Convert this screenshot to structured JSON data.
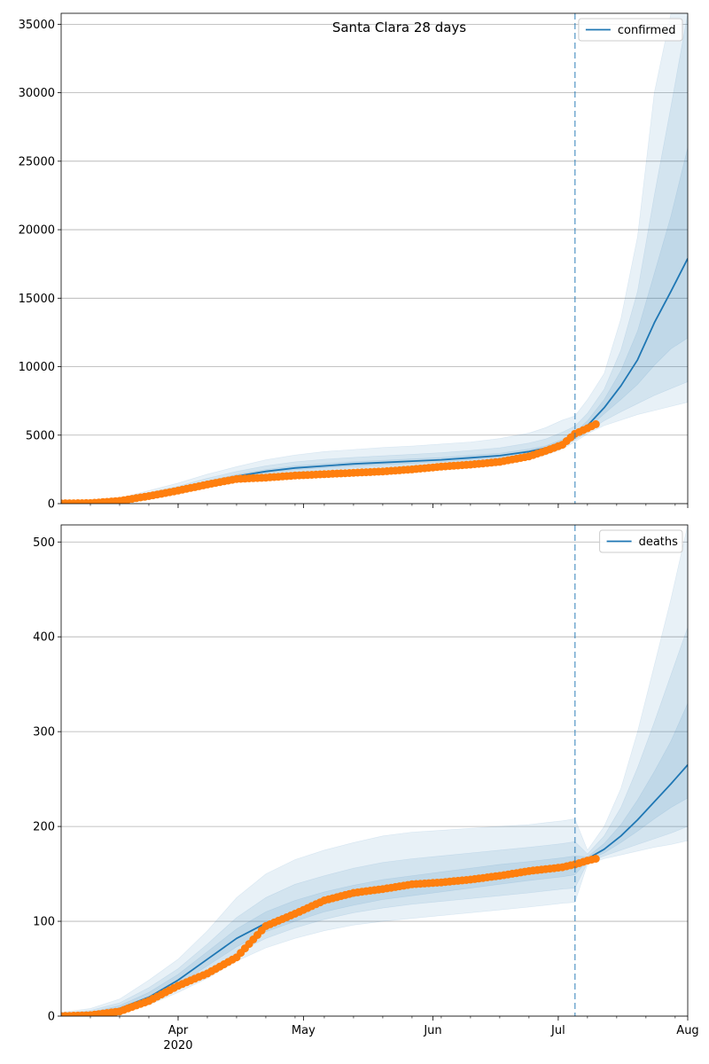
{
  "chart_data": [
    {
      "type": "line",
      "title": "Santa Clara 28 days",
      "legend": {
        "placement": "top-right",
        "entries": [
          "confirmed"
        ]
      },
      "x_dates": [
        "2020-03-04",
        "2020-03-11",
        "2020-03-18",
        "2020-03-25",
        "2020-04-01",
        "2020-04-08",
        "2020-04-15",
        "2020-04-22",
        "2020-04-29",
        "2020-05-06",
        "2020-05-13",
        "2020-05-20",
        "2020-05-27",
        "2020-06-03",
        "2020-06-10",
        "2020-06-17",
        "2020-06-24",
        "2020-06-28",
        "2020-07-02",
        "2020-07-05",
        "2020-07-08",
        "2020-07-12",
        "2020-07-16",
        "2020-07-20",
        "2020-07-24",
        "2020-07-28",
        "2020-08-01"
      ],
      "x_range": [
        "2020-03-04",
        "2020-08-01"
      ],
      "ylim": [
        0,
        35800
      ],
      "yticks": [
        0,
        5000,
        10000,
        15000,
        20000,
        25000,
        30000,
        35000
      ],
      "grid": "horizontal",
      "forecast_start": "2020-07-05",
      "series": [
        {
          "name": "confirmed",
          "color": "#1f77b4",
          "values": [
            20,
            40,
            250,
            600,
            1000,
            1550,
            2000,
            2350,
            2600,
            2750,
            2900,
            3000,
            3100,
            3200,
            3350,
            3500,
            3800,
            4050,
            4500,
            5000,
            5700,
            7000,
            8600,
            10500,
            13200,
            15500,
            17900
          ]
        }
      ],
      "bands": [
        {
          "lower": [
            10,
            25,
            150,
            450,
            800,
            1250,
            1650,
            1950,
            2150,
            2300,
            2400,
            2500,
            2600,
            2700,
            2850,
            3000,
            3300,
            3550,
            4000,
            4500,
            5100,
            5700,
            6100,
            6500,
            6800,
            7100,
            7400
          ],
          "upper": [
            35,
            70,
            400,
            950,
            1500,
            2150,
            2700,
            3200,
            3550,
            3800,
            3950,
            4100,
            4200,
            4350,
            4500,
            4750,
            5150,
            5550,
            6100,
            6400,
            7600,
            9500,
            13500,
            19500,
            30000,
            35800,
            35800
          ]
        },
        {
          "lower": [
            15,
            30,
            190,
            520,
            880,
            1380,
            1780,
            2100,
            2320,
            2470,
            2580,
            2680,
            2780,
            2880,
            3030,
            3180,
            3480,
            3740,
            4180,
            4650,
            5250,
            6050,
            6700,
            7300,
            7900,
            8400,
            8900
          ],
          "upper": [
            28,
            55,
            330,
            800,
            1270,
            1850,
            2350,
            2760,
            3050,
            3240,
            3370,
            3490,
            3600,
            3720,
            3880,
            4070,
            4420,
            4720,
            5220,
            5650,
            6600,
            8350,
            11200,
            15500,
            22500,
            29000,
            35800
          ]
        },
        {
          "lower": [
            18,
            35,
            220,
            570,
            940,
            1470,
            1890,
            2220,
            2460,
            2610,
            2740,
            2840,
            2940,
            3040,
            3190,
            3340,
            3640,
            3900,
            4340,
            4820,
            5460,
            6550,
            7600,
            8700,
            10100,
            11300,
            12100
          ],
          "upper": [
            24,
            47,
            285,
            660,
            1080,
            1650,
            2120,
            2490,
            2750,
            2910,
            3060,
            3160,
            3260,
            3360,
            3520,
            3680,
            3980,
            4220,
            4680,
            5200,
            6050,
            7600,
            9700,
            12600,
            16800,
            21000,
            26000
          ]
        }
      ],
      "observed": {
        "color": "#ff7f0e",
        "x_dates": [
          "2020-03-04",
          "2020-03-11",
          "2020-03-18",
          "2020-03-25",
          "2020-04-01",
          "2020-04-08",
          "2020-04-15",
          "2020-04-22",
          "2020-04-29",
          "2020-05-06",
          "2020-05-13",
          "2020-05-20",
          "2020-05-27",
          "2020-06-03",
          "2020-06-10",
          "2020-06-17",
          "2020-06-24",
          "2020-06-28",
          "2020-07-02",
          "2020-07-05",
          "2020-07-08",
          "2020-07-10"
        ],
        "values": [
          20,
          40,
          200,
          550,
          950,
          1400,
          1800,
          1900,
          2050,
          2150,
          2250,
          2350,
          2500,
          2700,
          2850,
          3050,
          3450,
          3850,
          4300,
          5100,
          5500,
          5800
        ]
      }
    },
    {
      "type": "line",
      "title": "",
      "legend": {
        "placement": "top-right",
        "entries": [
          "deaths"
        ]
      },
      "x_dates": [
        "2020-03-04",
        "2020-03-11",
        "2020-03-18",
        "2020-03-25",
        "2020-04-01",
        "2020-04-08",
        "2020-04-15",
        "2020-04-22",
        "2020-04-29",
        "2020-05-06",
        "2020-05-13",
        "2020-05-20",
        "2020-05-27",
        "2020-06-03",
        "2020-06-10",
        "2020-06-17",
        "2020-06-24",
        "2020-06-28",
        "2020-07-02",
        "2020-07-05",
        "2020-07-08",
        "2020-07-12",
        "2020-07-16",
        "2020-07-20",
        "2020-07-24",
        "2020-07-28",
        "2020-08-01"
      ],
      "x_range": [
        "2020-03-04",
        "2020-08-01"
      ],
      "ylim": [
        0,
        518
      ],
      "yticks": [
        0,
        100,
        200,
        300,
        400,
        500
      ],
      "grid": "horizontal",
      "forecast_start": "2020-07-05",
      "series": [
        {
          "name": "deaths",
          "color": "#1f77b4",
          "values": [
            0,
            2,
            8,
            20,
            38,
            60,
            82,
            98,
            110,
            120,
            127,
            133,
            137,
            141,
            145,
            149,
            153,
            155,
            157,
            160,
            166,
            176,
            190,
            207,
            226,
            245,
            265
          ]
        }
      ],
      "bands": [
        {
          "lower": [
            0,
            0,
            4,
            12,
            25,
            40,
            58,
            72,
            82,
            90,
            96,
            100,
            103,
            106,
            109,
            112,
            115,
            117,
            119,
            120,
            160,
            166,
            170,
            174,
            178,
            181,
            185
          ],
          "upper": [
            4,
            8,
            18,
            38,
            60,
            90,
            125,
            150,
            165,
            175,
            183,
            190,
            194,
            196,
            198,
            200,
            202,
            204,
            206,
            208,
            175,
            200,
            240,
            300,
            370,
            440,
            518
          ]
        },
        {
          "lower": [
            0,
            1,
            5,
            15,
            29,
            47,
            67,
            82,
            93,
            102,
            109,
            114,
            118,
            121,
            124,
            127,
            130,
            132,
            134,
            135,
            162,
            169,
            175,
            181,
            187,
            193,
            200
          ],
          "upper": [
            3,
            6,
            14,
            30,
            50,
            76,
            104,
            125,
            139,
            148,
            156,
            162,
            166,
            169,
            172,
            175,
            178,
            180,
            182,
            184,
            171,
            190,
            220,
            262,
            310,
            360,
            410
          ]
        },
        {
          "lower": [
            0,
            1,
            6,
            17,
            33,
            53,
            73,
            89,
            100,
            110,
            117,
            123,
            127,
            131,
            135,
            139,
            143,
            145,
            147,
            149,
            164,
            172,
            183,
            195,
            208,
            220,
            230
          ],
          "upper": [
            2,
            4,
            11,
            25,
            44,
            68,
            92,
            110,
            122,
            131,
            138,
            144,
            148,
            152,
            156,
            160,
            163,
            165,
            167,
            169,
            168,
            182,
            202,
            228,
            258,
            290,
            330
          ]
        }
      ],
      "observed": {
        "color": "#ff7f0e",
        "x_dates": [
          "2020-03-04",
          "2020-03-11",
          "2020-03-18",
          "2020-03-25",
          "2020-04-01",
          "2020-04-08",
          "2020-04-15",
          "2020-04-22",
          "2020-04-29",
          "2020-05-06",
          "2020-05-13",
          "2020-05-20",
          "2020-05-27",
          "2020-06-03",
          "2020-06-10",
          "2020-06-17",
          "2020-06-24",
          "2020-06-28",
          "2020-07-02",
          "2020-07-05",
          "2020-07-08",
          "2020-07-10"
        ],
        "values": [
          0,
          1,
          5,
          16,
          32,
          45,
          62,
          95,
          108,
          122,
          130,
          134,
          139,
          141,
          144,
          148,
          153,
          155,
          157,
          160,
          164,
          166
        ]
      }
    }
  ],
  "x_axis": {
    "tick_labels": [
      {
        "date": "2020-04-01",
        "label": "Apr",
        "sublabel": "2020"
      },
      {
        "date": "2020-05-01",
        "label": "May",
        "sublabel": ""
      },
      {
        "date": "2020-06-01",
        "label": "Jun",
        "sublabel": ""
      },
      {
        "date": "2020-07-01",
        "label": "Jul",
        "sublabel": ""
      },
      {
        "date": "2020-08-01",
        "label": "Aug",
        "sublabel": ""
      }
    ]
  }
}
